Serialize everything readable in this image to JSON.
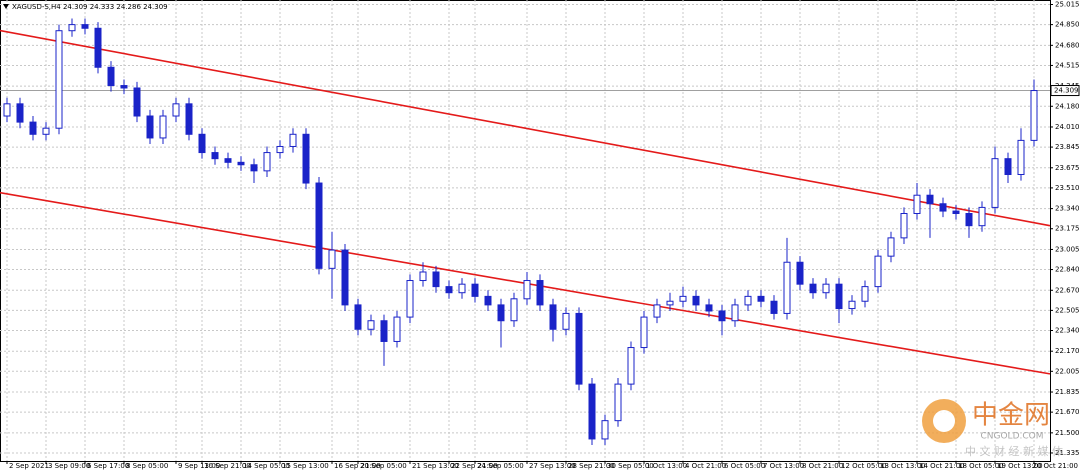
{
  "chart_data": {
    "type": "candlestick",
    "title": "XAGUSD-S,H4 24.309 24.333 24.286 24.309",
    "categories": [
      "2 Sep 2021",
      null,
      null,
      "3 Sep 09:00",
      null,
      null,
      "6 Sep 17:00",
      null,
      null,
      "8 Sep 05:00",
      null,
      null,
      null,
      "9 Sep 13:00",
      null,
      "10 Sep 21:00",
      null,
      null,
      "14 Sep 05:00",
      null,
      null,
      "15 Sep 13:00",
      null,
      null,
      null,
      "16 Sep 21:00",
      null,
      "20 Sep 05:00",
      null,
      null,
      null,
      "21 Sep 13:00",
      null,
      null,
      "22 Sep 21:00",
      null,
      "24 Sep 05:00",
      null,
      null,
      null,
      "27 Sep 13:00",
      null,
      null,
      "28 Sep 21:00",
      null,
      null,
      "30 Sep 05:00",
      null,
      null,
      "1 Oct 13:00",
      null,
      null,
      "4 Oct 21:00",
      null,
      null,
      "6 Oct 05:00",
      null,
      null,
      "7 Oct 13:00",
      null,
      null,
      "8 Oct 21:00",
      null,
      null,
      "12 Oct 05:00",
      null,
      null,
      "13 Oct 13:00",
      null,
      null,
      "14 Oct 21:00",
      null,
      null,
      "18 Oct 05:00",
      null,
      null,
      "19 Oct 13:00",
      null,
      null,
      "20 Oct 21:00"
    ],
    "series": [
      {
        "color": "#1a23c8",
        "open": [
          24.1,
          24.2,
          24.05,
          23.95,
          24.0,
          24.8,
          24.85,
          24.82,
          24.5,
          24.35,
          24.33,
          24.1,
          23.92,
          24.1,
          24.2,
          23.95,
          23.8,
          23.75,
          23.72,
          23.7,
          23.65,
          23.8,
          23.85,
          23.95,
          23.55,
          22.85,
          23.0,
          22.55,
          22.35,
          22.42,
          22.25,
          22.45,
          22.75,
          22.82,
          22.7,
          22.65,
          22.72,
          22.62,
          22.55,
          22.42,
          22.6,
          22.75,
          22.55,
          22.35,
          22.48,
          21.9,
          21.45,
          21.6,
          21.9,
          22.2,
          22.45,
          22.55,
          22.58,
          22.62,
          22.55,
          22.5,
          22.42,
          22.55,
          22.62,
          22.58,
          22.48,
          22.9,
          22.72,
          22.65,
          22.72,
          22.52,
          22.58,
          22.7,
          22.95,
          23.1,
          23.3,
          23.45,
          23.38,
          23.32,
          23.3,
          23.2,
          23.35,
          23.75,
          23.62,
          23.9
        ],
        "high": [
          24.25,
          24.25,
          24.1,
          24.05,
          24.85,
          24.9,
          24.9,
          24.87,
          24.55,
          24.4,
          24.38,
          24.15,
          24.15,
          24.25,
          24.25,
          24.0,
          23.85,
          23.8,
          23.77,
          23.75,
          23.85,
          23.9,
          24.0,
          24.0,
          23.6,
          23.15,
          23.05,
          22.6,
          22.47,
          22.47,
          22.5,
          22.8,
          22.9,
          22.87,
          22.75,
          22.77,
          22.77,
          22.67,
          22.6,
          22.65,
          22.82,
          22.8,
          22.6,
          22.53,
          22.53,
          21.95,
          21.65,
          21.95,
          22.25,
          22.5,
          22.6,
          22.65,
          22.7,
          22.67,
          22.6,
          22.55,
          22.6,
          22.67,
          22.67,
          22.63,
          23.1,
          22.95,
          22.77,
          22.77,
          22.77,
          22.63,
          22.75,
          23.0,
          23.15,
          23.35,
          23.55,
          23.5,
          23.43,
          23.37,
          23.35,
          23.4,
          23.85,
          23.8,
          24.0,
          24.4
        ],
        "low": [
          24.05,
          24.0,
          23.9,
          23.9,
          23.95,
          24.75,
          24.77,
          24.45,
          24.3,
          24.28,
          24.05,
          23.87,
          23.87,
          24.05,
          23.9,
          23.75,
          23.7,
          23.67,
          23.65,
          23.55,
          23.6,
          23.75,
          23.8,
          23.5,
          22.8,
          22.6,
          22.5,
          22.3,
          22.3,
          22.05,
          22.2,
          22.4,
          22.7,
          22.65,
          22.6,
          22.6,
          22.57,
          22.5,
          22.2,
          22.37,
          22.55,
          22.5,
          22.25,
          22.3,
          21.85,
          21.4,
          21.4,
          21.55,
          21.85,
          22.15,
          22.4,
          22.5,
          22.53,
          22.5,
          22.45,
          22.3,
          22.37,
          22.5,
          22.53,
          22.43,
          22.43,
          22.67,
          22.6,
          22.6,
          22.4,
          22.47,
          22.53,
          22.65,
          22.9,
          23.05,
          23.25,
          23.1,
          23.27,
          23.25,
          23.1,
          23.15,
          23.3,
          23.55,
          23.57,
          23.85
        ],
        "close": [
          24.2,
          24.05,
          23.95,
          24.0,
          24.8,
          24.85,
          24.82,
          24.5,
          24.35,
          24.33,
          24.1,
          23.92,
          24.1,
          24.2,
          23.95,
          23.8,
          23.75,
          23.72,
          23.7,
          23.65,
          23.8,
          23.85,
          23.95,
          23.55,
          22.85,
          23.0,
          22.55,
          22.35,
          22.42,
          22.25,
          22.45,
          22.75,
          22.82,
          22.7,
          22.65,
          22.72,
          22.62,
          22.55,
          22.42,
          22.6,
          22.75,
          22.55,
          22.35,
          22.48,
          21.9,
          21.45,
          21.6,
          21.9,
          22.2,
          22.45,
          22.55,
          22.58,
          22.62,
          22.55,
          22.5,
          22.42,
          22.55,
          22.62,
          22.58,
          22.48,
          22.9,
          22.72,
          22.65,
          22.72,
          22.52,
          22.58,
          22.7,
          22.95,
          23.1,
          23.3,
          23.45,
          23.38,
          23.32,
          23.3,
          23.2,
          23.35,
          23.75,
          23.62,
          23.9,
          24.309
        ]
      }
    ],
    "lines": [
      {
        "color": "#e41a1a",
        "values": [
          24.801,
          23.2
        ]
      },
      {
        "color": "#e41a1a",
        "values": [
          23.471,
          21.984
        ]
      }
    ],
    "last_price": {
      "value": 24.309,
      "label": "24.309"
    },
    "ylim": [
      21.269,
      25.052
    ],
    "yticks": [
      25.015,
      {
        "value": 24.85,
        "label": "24.850"
      },
      {
        "value": 24.68,
        "label": "24.680"
      },
      24.515,
      24.345,
      {
        "value": 24.18,
        "label": "24.180"
      },
      {
        "value": 24.01,
        "label": "24.010"
      },
      23.845,
      23.675,
      {
        "value": 23.51,
        "label": "23.510"
      },
      {
        "value": 23.34,
        "label": "23.340"
      },
      23.175,
      23.005,
      {
        "value": 22.84,
        "label": "22.840"
      },
      {
        "value": 22.67,
        "label": "22.670"
      },
      22.505,
      {
        "value": 22.34,
        "label": "22.340"
      },
      {
        "value": 22.17,
        "label": "22.170"
      },
      22.005,
      21.835,
      {
        "value": 21.67,
        "label": "21.670"
      },
      {
        "value": 21.5,
        "label": "21.500"
      },
      21.335
    ],
    "grid": true,
    "watermark": {
      "name": "中金网",
      "site": "CNGOLD.COM",
      "tagline": "中 文 财 经 新 媒 体"
    }
  }
}
